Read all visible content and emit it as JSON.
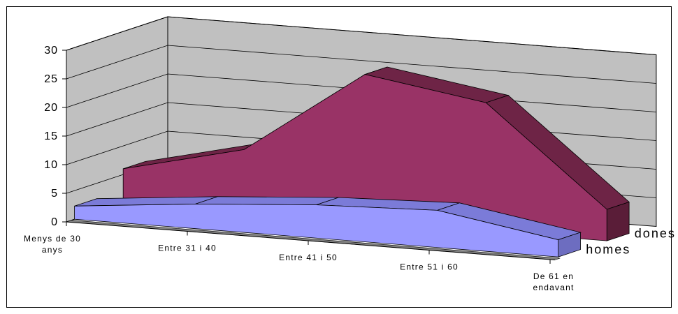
{
  "chart_data": {
    "type": "area",
    "three_d": true,
    "categories": [
      [
        "Menys de 30",
        "anys"
      ],
      [
        "Entre 31 i 40"
      ],
      [
        "Entre 41 i 50"
      ],
      [
        "Entre 51 i 60"
      ],
      [
        "De 61 en",
        "endavant"
      ]
    ],
    "series": [
      {
        "name": "homes",
        "values": [
          2.3,
          4.3,
          5.8,
          6.5,
          3.0
        ],
        "colors": {
          "front": "#9999ff",
          "top": "#7b7bd8",
          "side": "#6d6dc0"
        }
      },
      {
        "name": "dones",
        "values": [
          6.0,
          11.0,
          25.8,
          22.5,
          5.5
        ],
        "colors": {
          "front": "#993366",
          "top": "#6e2446",
          "side": "#5a1d38"
        }
      }
    ],
    "yticks": [
      0,
      5,
      10,
      15,
      20,
      25,
      30
    ],
    "ylim": [
      0,
      30
    ],
    "grid": true,
    "walls": {
      "back": "#c0c0c0",
      "side": "#c0c0c0",
      "floor": "#808080"
    },
    "legend_placement": "right-depth"
  }
}
